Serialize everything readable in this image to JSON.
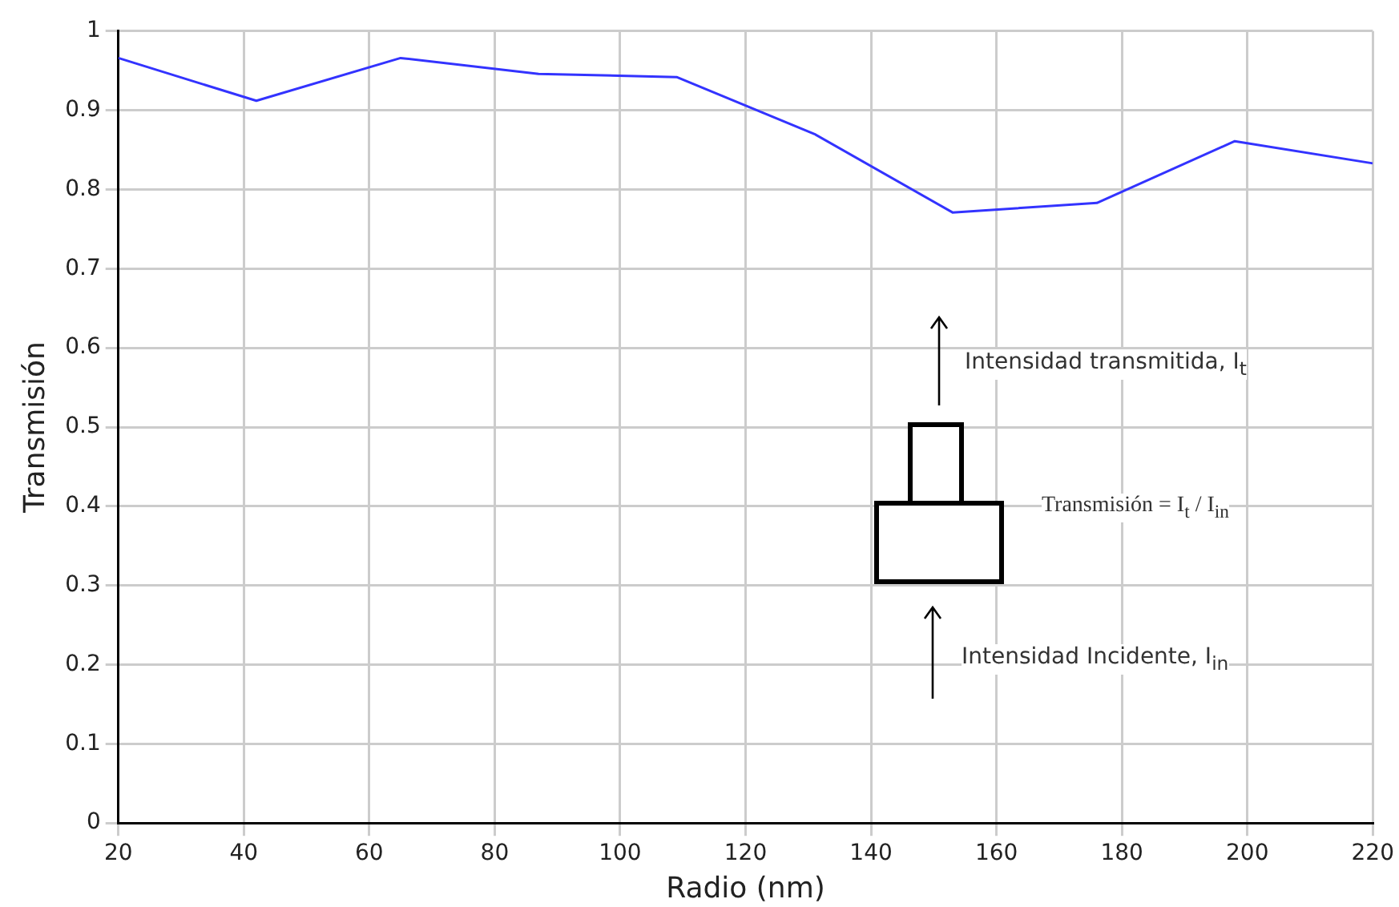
{
  "chart_data": {
    "type": "line",
    "xlabel": "Radio (nm)",
    "ylabel": "Transmisión",
    "x": [
      20,
      42,
      65,
      87,
      109,
      131,
      153,
      176,
      198,
      220
    ],
    "series": [
      {
        "color": "#3333ff",
        "values": [
          0.966,
          0.912,
          0.966,
          0.946,
          0.942,
          0.87,
          0.771,
          0.783,
          0.861,
          0.833
        ]
      }
    ],
    "xlim": [
      20,
      220
    ],
    "xticks": [
      20,
      40,
      60,
      80,
      100,
      120,
      140,
      160,
      180,
      200,
      220
    ],
    "ylim": [
      0,
      1
    ],
    "yticks": [
      0,
      0.1,
      0.2,
      0.3,
      0.4,
      0.5,
      0.6,
      0.7,
      0.8,
      0.9,
      1
    ],
    "grid": true,
    "legend": false,
    "marker": "none",
    "line_style": "solid",
    "annotations": [
      "Intensidad transmitida, I$_{t}$",
      "Transmisión = I$_{t}$ / I$_{in}$",
      "Intensidad Incidente, I$_{in}$"
    ]
  }
}
